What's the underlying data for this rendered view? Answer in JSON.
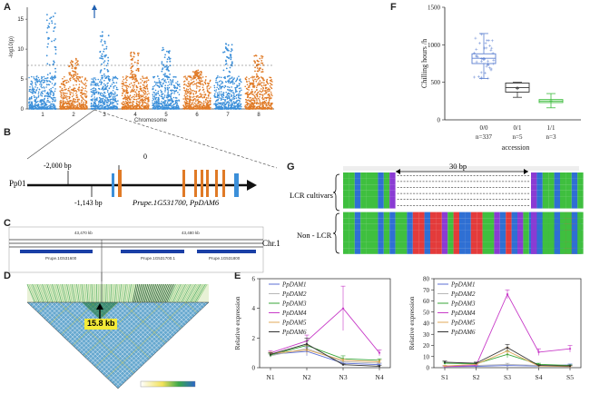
{
  "panels": {
    "a": "A",
    "b": "B",
    "c": "C",
    "d": "D",
    "e": "E",
    "f": "F",
    "g": "G"
  },
  "colors": {
    "manhattan_blue": "#3b8fd9",
    "manhattan_orange": "#e07a26",
    "ld_green": "#3aa84a",
    "ld_yellow": "#f2e25a",
    "box_blue": "#5b7fd0",
    "box_purple": "#d35fd2",
    "box_green": "#3cbc3c",
    "label_yellow": "#f4ea38"
  },
  "chart_data": [
    {
      "id": "A",
      "type": "scatter",
      "title": "",
      "xlabel": "Chromosome",
      "ylabel": "-log10(p)",
      "ylim": [
        0,
        17
      ],
      "yticks": [
        "0",
        "5",
        "10",
        "15"
      ],
      "categories": [
        "1",
        "2",
        "3",
        "4",
        "5",
        "6",
        "7",
        "8"
      ],
      "series": [
        {
          "chromosome": "1",
          "peak": 16.5
        },
        {
          "chromosome": "2",
          "peak": 8.5
        },
        {
          "chromosome": "3",
          "peak": 13.0
        },
        {
          "chromosome": "4",
          "peak": 9.5
        },
        {
          "chromosome": "5",
          "peak": 10.5
        },
        {
          "chromosome": "6",
          "peak": 6.5
        },
        {
          "chromosome": "7",
          "peak": 11.0
        },
        {
          "chromosome": "8",
          "peak": 9.0
        }
      ],
      "threshold": 7.2
    },
    {
      "id": "F",
      "type": "box",
      "xlabel": "accession",
      "ylabel": "Chilling hours /h",
      "ylim": [
        0,
        1500
      ],
      "yticks": [
        "0",
        "500",
        "1000",
        "1500"
      ],
      "categories": [
        "0/0",
        "0/1",
        "1/1"
      ],
      "counts": [
        "n=337",
        "n=5",
        "n=3"
      ],
      "boxes": [
        {
          "min": 550,
          "q1": 750,
          "median": 820,
          "q3": 880,
          "max": 1150,
          "mean": 810
        },
        {
          "min": 300,
          "q1": 370,
          "median": 430,
          "q3": 490,
          "max": 500,
          "mean": 420
        },
        {
          "min": 160,
          "q1": 230,
          "median": 250,
          "q3": 270,
          "max": 350,
          "mean": 250
        }
      ]
    },
    {
      "id": "E_left",
      "type": "line",
      "xlabel": "",
      "ylabel": "Relative expression",
      "ylim": [
        0,
        6
      ],
      "yticks": [
        "0",
        "2",
        "4",
        "6"
      ],
      "categories": [
        "N1",
        "N2",
        "N3",
        "N4"
      ],
      "series": [
        {
          "name": "PpDAM1",
          "color": "#5b6fd6",
          "values": [
            0.9,
            1.1,
            0.3,
            0.2
          ],
          "err": [
            0.1,
            0.3,
            0.1,
            0.05
          ]
        },
        {
          "name": "PpDAM2",
          "color": "#b7b7b7",
          "values": [
            0.8,
            1.3,
            0.4,
            0.3
          ],
          "err": [
            0.1,
            0.2,
            0.1,
            0.05
          ]
        },
        {
          "name": "PpDAM3",
          "color": "#37a637",
          "values": [
            0.85,
            1.5,
            0.6,
            0.5
          ],
          "err": [
            0.1,
            0.3,
            0.2,
            0.1
          ]
        },
        {
          "name": "PpDAM4",
          "color": "#c83cc8",
          "values": [
            1.0,
            1.8,
            4.0,
            1.0
          ],
          "err": [
            0.15,
            0.4,
            1.5,
            0.2
          ]
        },
        {
          "name": "PpDAM5",
          "color": "#e0a85a",
          "values": [
            0.95,
            1.2,
            0.5,
            0.4
          ],
          "err": [
            0.1,
            0.3,
            0.1,
            0.1
          ]
        },
        {
          "name": "PpDAM6",
          "color": "#333333",
          "values": [
            0.9,
            1.6,
            0.2,
            0.1
          ],
          "err": [
            0.1,
            0.4,
            0.05,
            0.05
          ]
        }
      ]
    },
    {
      "id": "E_right",
      "type": "line",
      "xlabel": "",
      "ylabel": "Relative expression",
      "ylim": [
        0,
        80
      ],
      "yticks": [
        "0",
        "10",
        "20",
        "30",
        "40",
        "50",
        "60",
        "70",
        "80"
      ],
      "categories": [
        "S1",
        "S2",
        "S3",
        "S4",
        "S5"
      ],
      "series": [
        {
          "name": "PpDAM1",
          "color": "#5b6fd6",
          "values": [
            1.0,
            1.2,
            2.0,
            1.5,
            2.5
          ],
          "err": [
            0.5,
            0.5,
            1.0,
            0.5,
            0.8
          ]
        },
        {
          "name": "PpDAM2",
          "color": "#b7b7b7",
          "values": [
            1.5,
            2.0,
            3.0,
            2.0,
            2.0
          ],
          "err": [
            0.5,
            0.5,
            1.0,
            0.5,
            0.5
          ]
        },
        {
          "name": "PpDAM3",
          "color": "#37a637",
          "values": [
            4.0,
            3.5,
            12.0,
            3.0,
            2.0
          ],
          "err": [
            1.0,
            1.0,
            3.0,
            1.0,
            0.5
          ]
        },
        {
          "name": "PpDAM4",
          "color": "#c83cc8",
          "values": [
            1.0,
            2.0,
            66.0,
            14.0,
            17.0
          ],
          "err": [
            0.5,
            0.5,
            4.0,
            3.0,
            3.0
          ]
        },
        {
          "name": "PpDAM5",
          "color": "#e0a85a",
          "values": [
            1.5,
            3.0,
            15.0,
            1.5,
            1.0
          ],
          "err": [
            0.5,
            1.0,
            3.0,
            0.5,
            0.5
          ]
        },
        {
          "name": "PpDAM6",
          "color": "#333333",
          "values": [
            5.0,
            4.0,
            18.0,
            2.0,
            1.5
          ],
          "err": [
            1.0,
            1.0,
            3.0,
            0.5,
            0.5
          ]
        }
      ]
    }
  ],
  "gene_model": {
    "chrom": "Pp01",
    "pos1": "-2,000 bp",
    "pos2": "0",
    "pos3": "-1,143 bp",
    "gene_label": "Prupe.1G531700, PpDAM6"
  },
  "track": {
    "pos1": "43,470 kb",
    "pos2": "43,480 kb",
    "chr": "Chr.1",
    "gene1": "Prupe.1G531600",
    "gene2": "Prupe.1G531700.1",
    "gene3": "Prupe.1G531800"
  },
  "ld": {
    "block_label": "15.8 kb"
  },
  "alignment": {
    "span": "30 bp",
    "group1": "LCR cultivars",
    "group2": "Non - LCR"
  }
}
